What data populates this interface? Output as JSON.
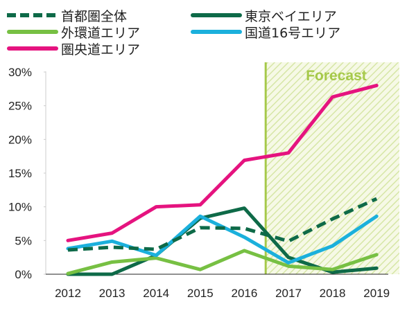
{
  "chart_data": {
    "type": "line",
    "categories": [
      "2012",
      "2013",
      "2014",
      "2015",
      "2016",
      "2017",
      "2018",
      "2019"
    ],
    "ylim": [
      0,
      30
    ],
    "yticks": [
      "0%",
      "5%",
      "10%",
      "15%",
      "20%",
      "25%",
      "30%"
    ],
    "grid": false,
    "legend_position": "top",
    "annotation": "Forecast",
    "forecast_from": "2017",
    "forecast_color": "#a6c94a",
    "series": [
      {
        "name": "首都圏全体",
        "color": "#0e6a48",
        "dashed": true,
        "values": [
          3.6,
          4.0,
          3.7,
          6.9,
          6.8,
          4.9,
          8.2,
          11.2
        ]
      },
      {
        "name": "東京ベイエリア",
        "color": "#0e6a48",
        "dashed": false,
        "values": [
          0,
          0,
          2.8,
          8.3,
          9.8,
          2.5,
          0.3,
          0.9
        ]
      },
      {
        "name": "外環道エリア",
        "color": "#77c043",
        "dashed": false,
        "values": [
          0.1,
          1.8,
          2.4,
          0.7,
          3.5,
          1.2,
          0.7,
          2.9
        ]
      },
      {
        "name": "国道16号エリア",
        "color": "#1bb0dc",
        "dashed": false,
        "values": [
          3.8,
          4.9,
          2.8,
          8.6,
          5.5,
          1.7,
          4.2,
          8.6
        ]
      },
      {
        "name": "圏央道エリア",
        "color": "#e5137f",
        "dashed": false,
        "values": [
          5.0,
          6.1,
          10.0,
          10.3,
          16.9,
          18.0,
          26.3,
          28.0
        ]
      }
    ]
  }
}
